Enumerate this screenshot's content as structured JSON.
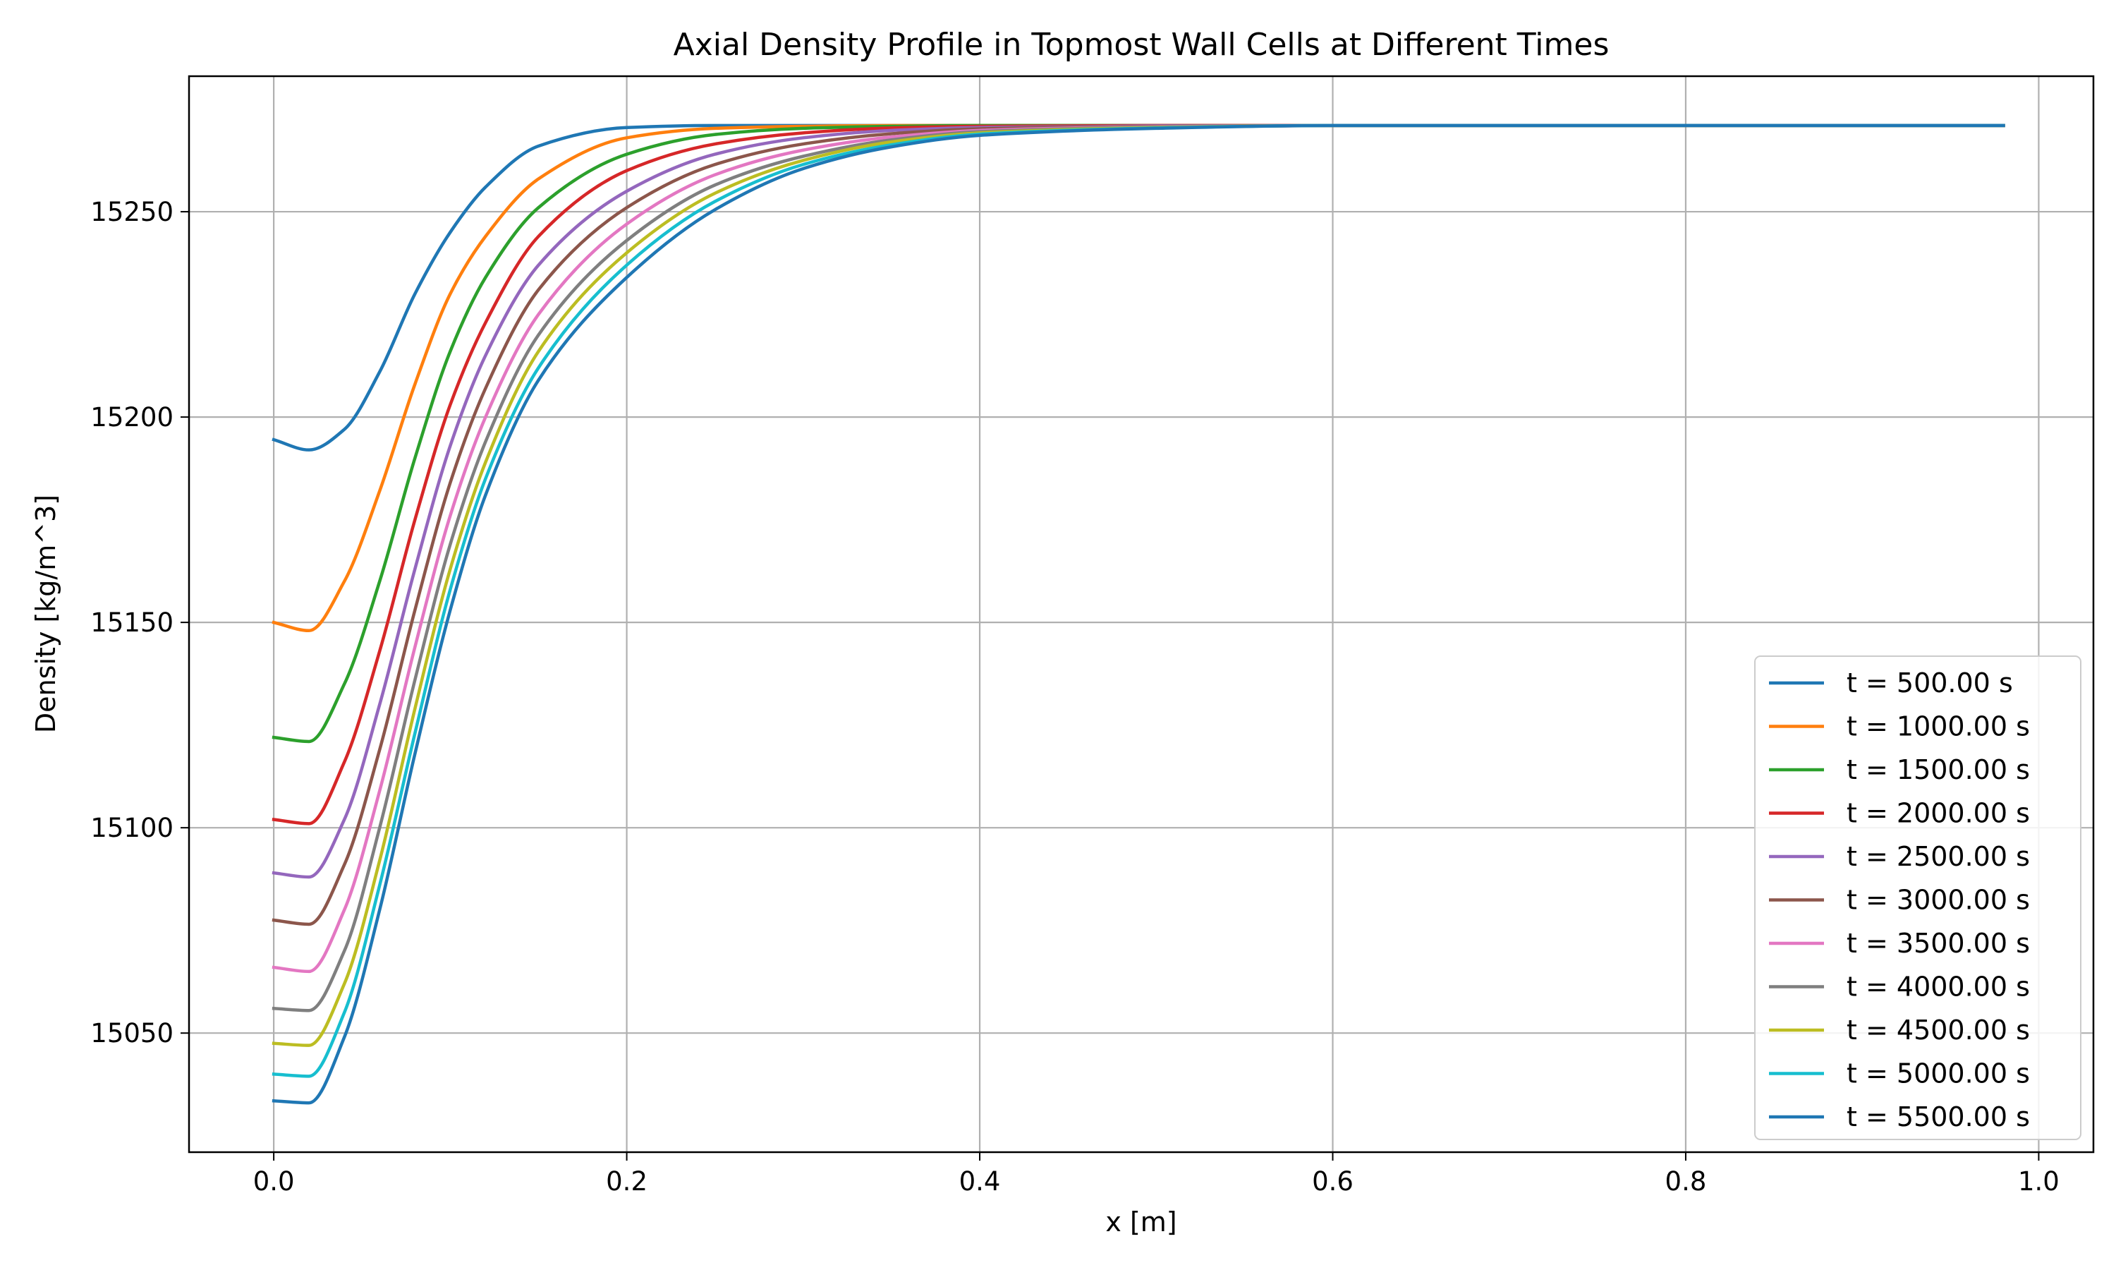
{
  "chart_data": {
    "type": "line",
    "title": "Axial Density Profile in Topmost Wall Cells at Different Times",
    "xlabel": "x [m]",
    "ylabel": "Density [kg/m^3]",
    "xlim": [
      -0.048,
      1.031
    ],
    "ylim": [
      15021,
      15283
    ],
    "xticks": [
      0.0,
      0.2,
      0.4,
      0.6,
      0.8,
      1.0
    ],
    "xtick_labels": [
      "0.0",
      "0.2",
      "0.4",
      "0.6",
      "0.8",
      "1.0"
    ],
    "yticks": [
      15050,
      15100,
      15150,
      15200,
      15250
    ],
    "ytick_labels": [
      "15050",
      "15100",
      "15150",
      "15200",
      "15250"
    ],
    "grid": true,
    "legend_position": "lower-right",
    "x": [
      0.0,
      0.02,
      0.04,
      0.06,
      0.08,
      0.1,
      0.12,
      0.15,
      0.2,
      0.25,
      0.3,
      0.35,
      0.4,
      0.5,
      0.6,
      0.7,
      0.8,
      0.9,
      0.98
    ],
    "series": [
      {
        "name": "t = 500.00 s",
        "color": "#1f77b4",
        "values": [
          15194.5,
          15192.0,
          15197.0,
          15211.0,
          15230.0,
          15245.0,
          15256.0,
          15266.0,
          15270.5,
          15271.0,
          15271.0,
          15271.0,
          15271.0,
          15271.0,
          15271.0,
          15271.0,
          15271.0,
          15271.0,
          15271.0
        ]
      },
      {
        "name": "t = 1000.00 s",
        "color": "#ff7f0e",
        "values": [
          15150.0,
          15148.0,
          15160.0,
          15182.0,
          15208.0,
          15230.0,
          15244.0,
          15258.0,
          15268.0,
          15270.3,
          15270.8,
          15271.0,
          15271.0,
          15271.0,
          15271.0,
          15271.0,
          15271.0,
          15271.0,
          15271.0
        ]
      },
      {
        "name": "t = 1500.00 s",
        "color": "#2ca02c",
        "values": [
          15122.0,
          15121.0,
          15135.0,
          15160.0,
          15190.0,
          15216.0,
          15234.0,
          15251.0,
          15264.0,
          15268.8,
          15270.3,
          15270.8,
          15271.0,
          15271.0,
          15271.0,
          15271.0,
          15271.0,
          15271.0,
          15271.0
        ]
      },
      {
        "name": "t = 2000.00 s",
        "color": "#d62728",
        "values": [
          15102.0,
          15101.0,
          15116.0,
          15143.0,
          15175.0,
          15203.0,
          15223.0,
          15244.0,
          15260.0,
          15266.5,
          15269.2,
          15270.4,
          15270.8,
          15271.0,
          15271.0,
          15271.0,
          15271.0,
          15271.0,
          15271.0
        ]
      },
      {
        "name": "t = 2500.00 s",
        "color": "#9467bd",
        "values": [
          15089.0,
          15088.0,
          15102.0,
          15130.0,
          15163.0,
          15193.0,
          15215.0,
          15237.0,
          15255.0,
          15264.0,
          15268.0,
          15269.8,
          15270.5,
          15270.9,
          15271.0,
          15271.0,
          15271.0,
          15271.0,
          15271.0
        ]
      },
      {
        "name": "t = 3000.00 s",
        "color": "#8c564b",
        "values": [
          15077.5,
          15076.5,
          15091.0,
          15119.0,
          15153.0,
          15184.0,
          15207.0,
          15231.0,
          15251.0,
          15261.5,
          15266.5,
          15269.0,
          15270.2,
          15270.8,
          15271.0,
          15271.0,
          15271.0,
          15271.0,
          15271.0
        ]
      },
      {
        "name": "t = 3500.00 s",
        "color": "#e377c2",
        "values": [
          15066.0,
          15065.0,
          15080.0,
          15109.0,
          15144.0,
          15176.0,
          15200.0,
          15225.0,
          15247.0,
          15259.0,
          15265.0,
          15268.2,
          15269.8,
          15270.7,
          15271.0,
          15271.0,
          15271.0,
          15271.0,
          15271.0
        ]
      },
      {
        "name": "t = 4000.00 s",
        "color": "#7f7f7f",
        "values": [
          15056.0,
          15055.5,
          15070.0,
          15100.0,
          15136.0,
          15169.0,
          15194.0,
          15220.0,
          15243.0,
          15256.5,
          15263.5,
          15267.5,
          15269.5,
          15270.6,
          15271.0,
          15271.0,
          15271.0,
          15271.0,
          15271.0
        ]
      },
      {
        "name": "t = 4500.00 s",
        "color": "#bcbd22",
        "values": [
          15047.5,
          15047.0,
          15062.0,
          15092.0,
          15129.0,
          15163.0,
          15189.0,
          15216.0,
          15240.0,
          15254.5,
          15262.5,
          15267.0,
          15269.2,
          15270.5,
          15271.0,
          15271.0,
          15271.0,
          15271.0,
          15271.0
        ]
      },
      {
        "name": "t = 5000.00 s",
        "color": "#17becf",
        "values": [
          15040.0,
          15039.5,
          15055.0,
          15086.0,
          15123.0,
          15158.0,
          15185.0,
          15212.0,
          15237.0,
          15252.5,
          15261.5,
          15266.3,
          15268.9,
          15270.4,
          15271.0,
          15271.0,
          15271.0,
          15271.0,
          15271.0
        ]
      },
      {
        "name": "t = 5500.00 s",
        "color": "#1f77b4",
        "values": [
          15033.5,
          15033.0,
          15049.0,
          15080.0,
          15118.0,
          15153.0,
          15181.0,
          15209.0,
          15234.0,
          15250.5,
          15260.5,
          15265.8,
          15268.6,
          15270.3,
          15271.0,
          15271.0,
          15271.0,
          15271.0,
          15271.0
        ]
      }
    ]
  }
}
